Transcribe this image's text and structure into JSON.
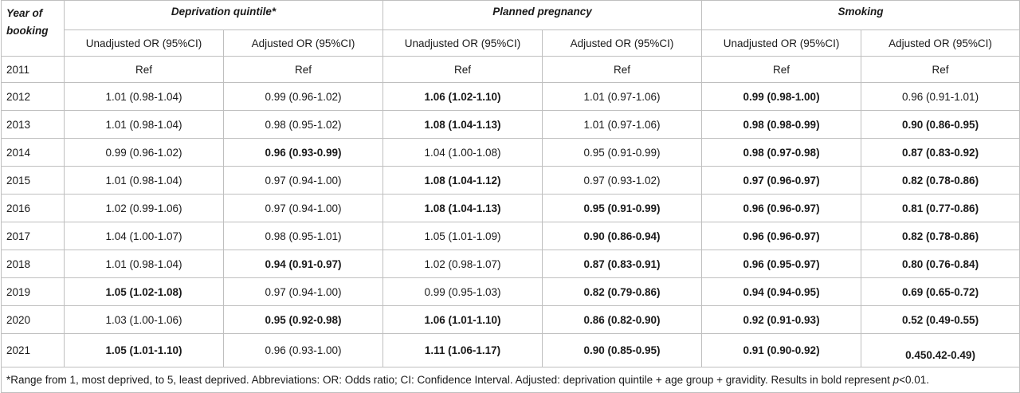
{
  "header": {
    "year_label": "Year of booking",
    "groups": [
      "Deprivation quintile*",
      "Planned pregnancy",
      "Smoking"
    ],
    "subcols": [
      "Unadjusted OR (95%CI)",
      "Adjusted OR (95%CI)",
      "Unadjusted OR (95%CI)",
      "Adjusted OR (95%CI)",
      "Unadjusted OR (95%CI)",
      "Adjusted OR (95%CI)"
    ]
  },
  "rows": [
    {
      "year": "2011",
      "cells": [
        {
          "text": "Ref",
          "bold": false
        },
        {
          "text": "Ref",
          "bold": false
        },
        {
          "text": "Ref",
          "bold": false
        },
        {
          "text": "Ref",
          "bold": false
        },
        {
          "text": "Ref",
          "bold": false
        },
        {
          "text": "Ref",
          "bold": false
        }
      ]
    },
    {
      "year": "2012",
      "cells": [
        {
          "text": "1.01 (0.98-1.04)",
          "bold": false
        },
        {
          "text": "0.99 (0.96-1.02)",
          "bold": false
        },
        {
          "text": "1.06 (1.02-1.10)",
          "bold": true
        },
        {
          "text": "1.01 (0.97-1.06)",
          "bold": false
        },
        {
          "text": "0.99 (0.98-1.00)",
          "bold": true
        },
        {
          "text": "0.96 (0.91-1.01)",
          "bold": false
        }
      ]
    },
    {
      "year": "2013",
      "cells": [
        {
          "text": "1.01 (0.98-1.04)",
          "bold": false
        },
        {
          "text": "0.98 (0.95-1.02)",
          "bold": false
        },
        {
          "text": "1.08 (1.04-1.13)",
          "bold": true
        },
        {
          "text": "1.01 (0.97-1.06)",
          "bold": false
        },
        {
          "text": "0.98 (0.98-0.99)",
          "bold": true
        },
        {
          "text": "0.90 (0.86-0.95)",
          "bold": true
        }
      ]
    },
    {
      "year": "2014",
      "cells": [
        {
          "text": "0.99 (0.96-1.02)",
          "bold": false
        },
        {
          "text": "0.96 (0.93-0.99)",
          "bold": true
        },
        {
          "text": "1.04 (1.00-1.08)",
          "bold": false
        },
        {
          "text": "0.95 (0.91-0.99)",
          "bold": false
        },
        {
          "text": "0.98 (0.97-0.98)",
          "bold": true
        },
        {
          "text": "0.87 (0.83-0.92)",
          "bold": true
        }
      ]
    },
    {
      "year": "2015",
      "cells": [
        {
          "text": "1.01 (0.98-1.04)",
          "bold": false
        },
        {
          "text": "0.97 (0.94-1.00)",
          "bold": false
        },
        {
          "text": "1.08 (1.04-1.12)",
          "bold": true
        },
        {
          "text": "0.97 (0.93-1.02)",
          "bold": false
        },
        {
          "text": "0.97 (0.96-0.97)",
          "bold": true
        },
        {
          "text": "0.82 (0.78-0.86)",
          "bold": true
        }
      ]
    },
    {
      "year": "2016",
      "cells": [
        {
          "text": "1.02 (0.99-1.06)",
          "bold": false
        },
        {
          "text": "0.97 (0.94-1.00)",
          "bold": false
        },
        {
          "text": "1.08 (1.04-1.13)",
          "bold": true
        },
        {
          "text": "0.95 (0.91-0.99)",
          "bold": true
        },
        {
          "text": "0.96 (0.96-0.97)",
          "bold": true
        },
        {
          "text": "0.81 (0.77-0.86)",
          "bold": true
        }
      ]
    },
    {
      "year": "2017",
      "cells": [
        {
          "text": "1.04 (1.00-1.07)",
          "bold": false
        },
        {
          "text": "0.98 (0.95-1.01)",
          "bold": false
        },
        {
          "text": "1.05 (1.01-1.09)",
          "bold": false
        },
        {
          "text": "0.90 (0.86-0.94)",
          "bold": true
        },
        {
          "text": "0.96 (0.96-0.97)",
          "bold": true
        },
        {
          "text": "0.82 (0.78-0.86)",
          "bold": true
        }
      ]
    },
    {
      "year": "2018",
      "cells": [
        {
          "text": "1.01 (0.98-1.04)",
          "bold": false
        },
        {
          "text": "0.94 (0.91-0.97)",
          "bold": true
        },
        {
          "text": "1.02 (0.98-1.07)",
          "bold": false
        },
        {
          "text": "0.87 (0.83-0.91)",
          "bold": true
        },
        {
          "text": "0.96 (0.95-0.97)",
          "bold": true
        },
        {
          "text": "0.80 (0.76-0.84)",
          "bold": true
        }
      ]
    },
    {
      "year": "2019",
      "cells": [
        {
          "text": "1.05 (1.02-1.08)",
          "bold": true
        },
        {
          "text": "0.97 (0.94-1.00)",
          "bold": false
        },
        {
          "text": "0.99 (0.95-1.03)",
          "bold": false
        },
        {
          "text": "0.82 (0.79-0.86)",
          "bold": true
        },
        {
          "text": "0.94 (0.94-0.95)",
          "bold": true
        },
        {
          "text": "0.69 (0.65-0.72)",
          "bold": true
        }
      ]
    },
    {
      "year": "2020",
      "cells": [
        {
          "text": "1.03 (1.00-1.06)",
          "bold": false
        },
        {
          "text": "0.95 (0.92-0.98)",
          "bold": true
        },
        {
          "text": "1.06 (1.01-1.10)",
          "bold": true
        },
        {
          "text": "0.86 (0.82-0.90)",
          "bold": true
        },
        {
          "text": "0.92 (0.91-0.93)",
          "bold": true
        },
        {
          "text": "0.52 (0.49-0.55)",
          "bold": true
        }
      ]
    },
    {
      "year": "2021",
      "cells": [
        {
          "text": "1.05 (1.01-1.10)",
          "bold": true
        },
        {
          "text": "0.96 (0.93-1.00)",
          "bold": false
        },
        {
          "text": "1.11 (1.06-1.17)",
          "bold": true
        },
        {
          "text": "0.90 (0.85-0.95)",
          "bold": true
        },
        {
          "text": "0.91 (0.90-0.92)",
          "bold": true
        },
        {
          "text": "0.450.42-0.49)",
          "bold": true
        }
      ]
    }
  ],
  "footnote": {
    "text": "*Range from 1, most deprived, to 5, least deprived. Abbreviations: OR: Odds ratio; CI: Confidence Interval. Adjusted: deprivation quintile + age group + gravidity. Results in bold represent ",
    "p_symbol": "p",
    "p_suffix": "<0.01."
  }
}
